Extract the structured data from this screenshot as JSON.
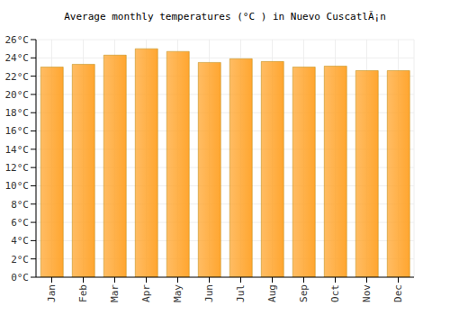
{
  "chart_data": {
    "type": "bar",
    "title": "Average monthly temperatures (°C ) in Nuevo CuscatlÃ¡n",
    "categories": [
      "Jan",
      "Feb",
      "Mar",
      "Apr",
      "May",
      "Jun",
      "Jul",
      "Aug",
      "Sep",
      "Oct",
      "Nov",
      "Dec"
    ],
    "values": [
      23.0,
      23.3,
      24.3,
      25.0,
      24.7,
      23.5,
      23.9,
      23.6,
      23.0,
      23.1,
      22.6,
      22.6
    ],
    "color": "#ffa630",
    "ylim": [
      0,
      26
    ],
    "yticks": [
      {
        "value": 0,
        "label": "0°C"
      },
      {
        "value": 2,
        "label": "2°C"
      },
      {
        "value": 4,
        "label": "4°C"
      },
      {
        "value": 6,
        "label": "6°C"
      },
      {
        "value": 8,
        "label": "8°C"
      },
      {
        "value": 10,
        "label": "10°C"
      },
      {
        "value": 12,
        "label": "12°C"
      },
      {
        "value": 14,
        "label": "14°C"
      },
      {
        "value": 16,
        "label": "16°C"
      },
      {
        "value": 18,
        "label": "18°C"
      },
      {
        "value": 20,
        "label": "20°C"
      },
      {
        "value": 22,
        "label": "22°C"
      },
      {
        "value": 24,
        "label": "24°C"
      },
      {
        "value": 26,
        "label": "26°C"
      }
    ],
    "grid": true
  }
}
